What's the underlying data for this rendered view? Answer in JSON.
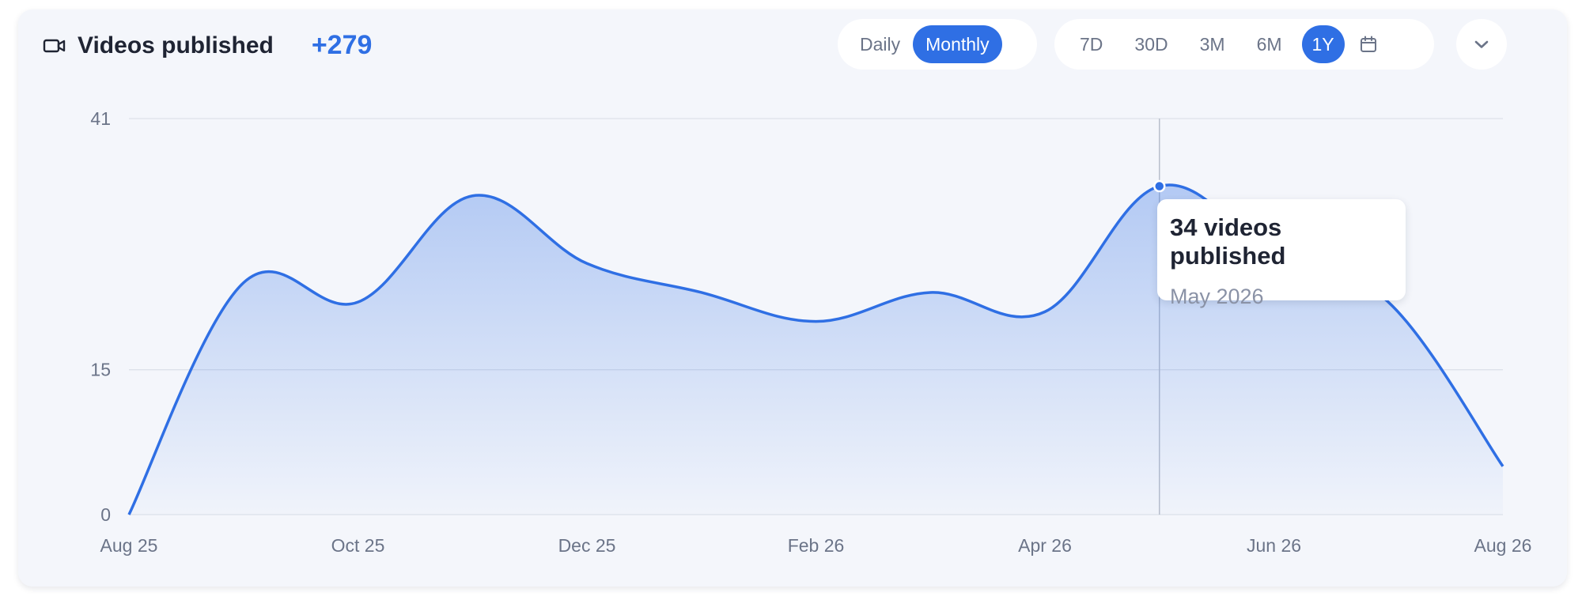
{
  "header": {
    "title": "Videos published",
    "total": "+279",
    "title_icon": "video-camera-icon"
  },
  "period_toggle": {
    "options": [
      "Daily",
      "Monthly"
    ],
    "selected": "Monthly"
  },
  "range_toggle": {
    "options": [
      "7D",
      "30D",
      "3M",
      "6M",
      "1Y"
    ],
    "selected": "1Y",
    "calendar_icon": "calendar-icon"
  },
  "dropdown_icon": "chevron-down-icon",
  "tooltip": {
    "value_text": "34 videos published",
    "date_text": "May 2026"
  },
  "colors": {
    "accent": "#2f6fe4",
    "card_bg": "#f4f6fb",
    "grid": "#dde1ea",
    "text_muted": "#6b7488"
  },
  "chart_data": {
    "type": "area",
    "title": "Videos published",
    "x": [
      "Aug 25",
      "Sep 25",
      "Oct 25",
      "Nov 25",
      "Dec 25",
      "Jan 26",
      "Feb 26",
      "Mar 26",
      "Apr 26",
      "May 26",
      "Jun 26",
      "Jul 26",
      "Aug 26"
    ],
    "series": [
      {
        "values": [
          0,
          24,
          22,
          33,
          26,
          23,
          20,
          23,
          21,
          34,
          27,
          22,
          5
        ]
      }
    ],
    "x_tick_labels": [
      "Aug 25",
      "Oct 25",
      "Dec 25",
      "Feb 26",
      "Apr 26",
      "Jun 26",
      "Aug 26"
    ],
    "y_ticks": [
      0,
      15,
      41
    ],
    "ylim": [
      0,
      41
    ],
    "grid": true,
    "highlight": {
      "x": "May 26",
      "value": 34
    }
  }
}
